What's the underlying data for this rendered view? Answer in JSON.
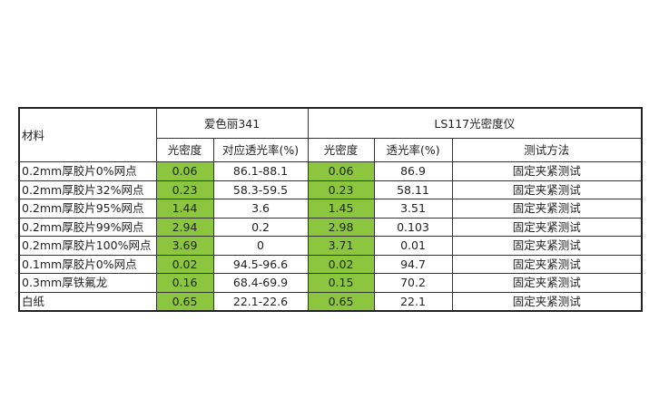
{
  "header": {
    "material": "材料",
    "group1": "爱色丽341",
    "group2": "LS117光密度仪",
    "g1_density": "光密度",
    "g1_transmittance": "对应透光率(%)",
    "g2_density": "光密度",
    "g2_transmittance": "透光率(%)",
    "method": "测试方法"
  },
  "highlight_color": "#8cc63e",
  "rows": [
    {
      "material": "0.2mm厚胶片0%网点",
      "d1": "0.06",
      "t1": "86.1-88.1",
      "d2": "0.06",
      "t2": "86.9",
      "method": "固定夹紧测试"
    },
    {
      "material": "0.2mm厚胶片32%网点",
      "d1": "0.23",
      "t1": "58.3-59.5",
      "d2": "0.23",
      "t2": "58.11",
      "method": "固定夹紧测试"
    },
    {
      "material": "0.2mm厚胶片95%网点",
      "d1": "1.44",
      "t1": "3.6",
      "d2": "1.45",
      "t2": "3.51",
      "method": "固定夹紧测试"
    },
    {
      "material": "0.2mm厚胶片99%网点",
      "d1": "2.94",
      "t1": "0.2",
      "d2": "2.98",
      "t2": "0.103",
      "method": "固定夹紧测试"
    },
    {
      "material": "0.2mm厚胶片100%网点",
      "d1": "3.69",
      "t1": "0",
      "d2": "3.71",
      "t2": "0.01",
      "method": "固定夹紧测试"
    },
    {
      "material": "0.1mm厚胶片0%网点",
      "d1": "0.02",
      "t1": "94.5-96.6",
      "d2": "0.02",
      "t2": "94.7",
      "method": "固定夹紧测试"
    },
    {
      "material": "0.3mm厚铁氟龙",
      "d1": "0.16",
      "t1": "68.4-69.9",
      "d2": "0.15",
      "t2": "70.2",
      "method": "固定夹紧测试"
    },
    {
      "material": "白纸",
      "d1": "0.65",
      "t1": "22.1-22.6",
      "d2": "0.65",
      "t2": "22.1",
      "method": "固定夹紧测试"
    }
  ]
}
